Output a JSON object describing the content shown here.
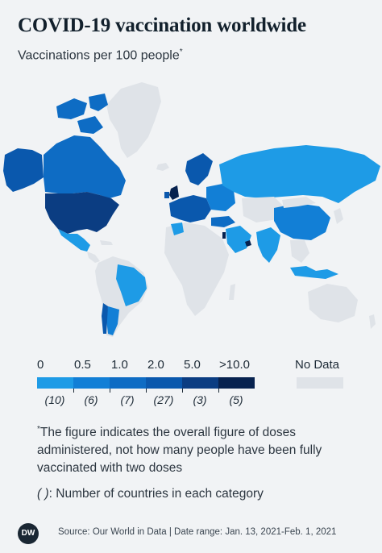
{
  "header": {
    "title": "COVID-19 vaccination worldwide",
    "subtitle": "Vaccinations per 100 people",
    "subtitle_mark": "*"
  },
  "colors": {
    "no_data": "#dfe3e8",
    "cat_0_05": "#1e9be6",
    "cat_05_1": "#127fd6",
    "cat_1_2": "#0e6cc4",
    "cat_2_5": "#0a58ad",
    "cat_5_10": "#0b3d82",
    "cat_10_plus": "#07224f",
    "background": "#f1f3f5"
  },
  "legend": {
    "thresholds": [
      "0",
      "0.5",
      "1.0",
      "2.0",
      "5.0",
      ">10.0"
    ],
    "counts": [
      "(10)",
      "(6)",
      "(7)",
      "(27)",
      "(3)",
      "(5)"
    ],
    "no_data_label": "No Data"
  },
  "notes": {
    "footnote_mark": "*",
    "footnote": "The figure indicates the overall figure of doses administered, not how many people have been fully vaccinated with two doses",
    "count_symbol": "( )",
    "count_text": ": Number of countries in each category"
  },
  "footer": {
    "logo_text": "DW",
    "source": "Source: Our World in Data | Date range: Jan. 13, 2021-Feb. 1, 2021"
  }
}
